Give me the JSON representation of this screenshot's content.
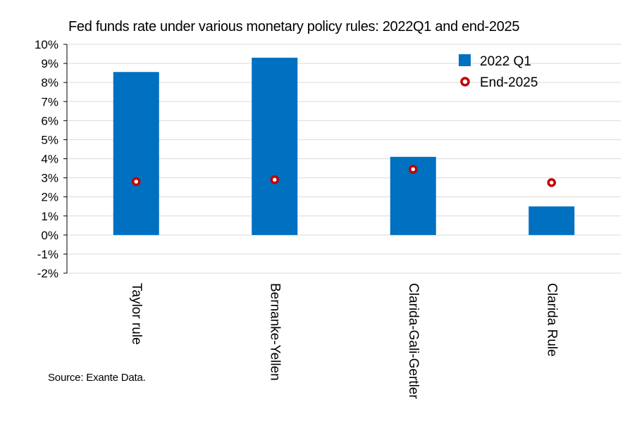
{
  "chart_data": {
    "type": "bar",
    "title": "Fed funds rate under various monetary policy rules: 2022Q1 and end-2025",
    "source": "Source: Exante Data.",
    "categories": [
      "Taylor rule",
      "Bernanke-Yellen",
      "Clarida-Gali-Gertler",
      "Clarida Rule"
    ],
    "series": [
      {
        "name": "2022 Q1",
        "kind": "bar",
        "color": "#0070c0",
        "values": [
          8.55,
          9.3,
          4.1,
          1.5
        ]
      },
      {
        "name": "End-2025",
        "kind": "marker",
        "color": "#c00000",
        "values": [
          2.8,
          2.9,
          3.45,
          2.75
        ]
      }
    ],
    "ylim": [
      -2,
      10
    ],
    "yticks": [
      -2,
      -1,
      0,
      1,
      2,
      3,
      4,
      5,
      6,
      7,
      8,
      9,
      10
    ],
    "ytick_labels": [
      "-2%",
      "-1%",
      "0%",
      "1%",
      "2%",
      "3%",
      "4%",
      "5%",
      "6%",
      "7%",
      "8%",
      "9%",
      "10%"
    ],
    "grid": true,
    "legend_position": "top-right",
    "xlabel": "",
    "ylabel": ""
  }
}
